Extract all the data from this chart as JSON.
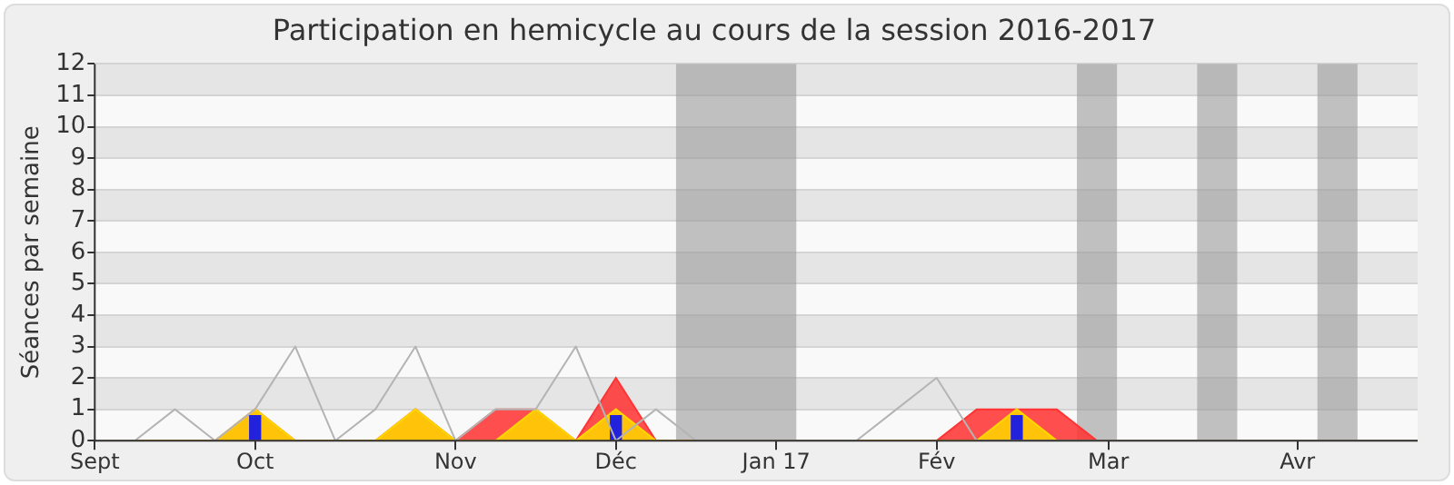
{
  "chart_data": {
    "type": "line",
    "title": "Participation en hemicycle au cours de la session 2016-2017",
    "ylabel": "Séances par semaine",
    "x": [
      "2016-09-05",
      "2016-09-12",
      "2016-09-19",
      "2016-09-26",
      "2016-10-03",
      "2016-10-10",
      "2016-10-17",
      "2016-10-24",
      "2016-10-31",
      "2016-11-07",
      "2016-11-14",
      "2016-11-21",
      "2016-11-28",
      "2016-12-05",
      "2016-12-12",
      "2016-12-19",
      "2016-12-26",
      "2017-01-02",
      "2017-01-09",
      "2017-01-16",
      "2017-01-23",
      "2017-01-30",
      "2017-02-06",
      "2017-02-13",
      "2017-02-20",
      "2017-02-27",
      "2017-03-06",
      "2017-03-13",
      "2017-03-20",
      "2017-03-27",
      "2017-04-03",
      "2017-04-10",
      "2017-04-17",
      "2017-04-24"
    ],
    "xlim": [
      "2016-09-05",
      "2017-04-24"
    ],
    "xticks": [
      {
        "value": "2016-09-05",
        "label": "Sept"
      },
      {
        "value": "2016-10-03",
        "label": "Oct"
      },
      {
        "value": "2016-11-07",
        "label": "Nov"
      },
      {
        "value": "2016-12-05",
        "label": "Déc"
      },
      {
        "value": "2017-01-02",
        "label": "Jan 17"
      },
      {
        "value": "2017-01-30",
        "label": "Fév"
      },
      {
        "value": "2017-03-01",
        "label": "Mar"
      },
      {
        "value": "2017-04-03",
        "label": "Avr"
      }
    ],
    "ylim": [
      0,
      12
    ],
    "yticks": [
      0,
      1,
      2,
      3,
      4,
      5,
      6,
      7,
      8,
      9,
      10,
      11,
      12
    ],
    "grid": "y",
    "bands": [
      {
        "axis": "x",
        "from": "2016-12-15T12:00",
        "to": "2017-01-05T12:00",
        "color": "#999999"
      },
      {
        "axis": "x",
        "from": "2017-02-23T12:00",
        "to": "2017-03-02T12:00",
        "color": "#999999"
      },
      {
        "axis": "x",
        "from": "2017-03-16T12:00",
        "to": "2017-03-23T12:00",
        "color": "#999999"
      },
      {
        "axis": "x",
        "from": "2017-04-06T12:00",
        "to": "2017-04-13T12:00",
        "color": "#999999"
      }
    ],
    "series": [
      {
        "type": "area",
        "color": "#ff3333",
        "values": [
          0,
          0,
          0,
          0,
          1,
          0,
          0,
          0,
          1,
          0,
          1,
          1,
          0,
          2,
          0,
          0,
          0,
          0,
          0,
          0,
          0,
          0,
          1,
          1,
          1,
          0,
          0,
          0,
          0,
          0,
          0,
          0,
          0,
          0
        ]
      },
      {
        "type": "area",
        "color": "#ffd700",
        "values": [
          0,
          0,
          0,
          0,
          1,
          0,
          0,
          0,
          1,
          0,
          0,
          1,
          0,
          1,
          0,
          0,
          0,
          0,
          0,
          0,
          0,
          0,
          0,
          1,
          0,
          0,
          0,
          0,
          0,
          0,
          0,
          0,
          0,
          0
        ]
      },
      {
        "type": "bar",
        "color": "#2222dd",
        "values": [
          null,
          null,
          null,
          null,
          0.8,
          null,
          null,
          null,
          null,
          null,
          null,
          null,
          null,
          0.8,
          null,
          null,
          null,
          null,
          null,
          null,
          null,
          null,
          null,
          0.8,
          null,
          null,
          null,
          null,
          null,
          null,
          null,
          null,
          null,
          null
        ]
      },
      {
        "color": "#b4b4b4",
        "values": [
          0,
          0,
          1,
          0,
          1,
          3,
          0,
          1,
          3,
          0,
          1,
          1,
          3,
          0,
          1,
          0,
          0,
          0,
          0,
          0,
          1,
          2,
          0,
          0,
          0,
          0,
          0,
          0,
          0,
          0,
          0,
          0,
          0,
          0
        ]
      }
    ]
  }
}
